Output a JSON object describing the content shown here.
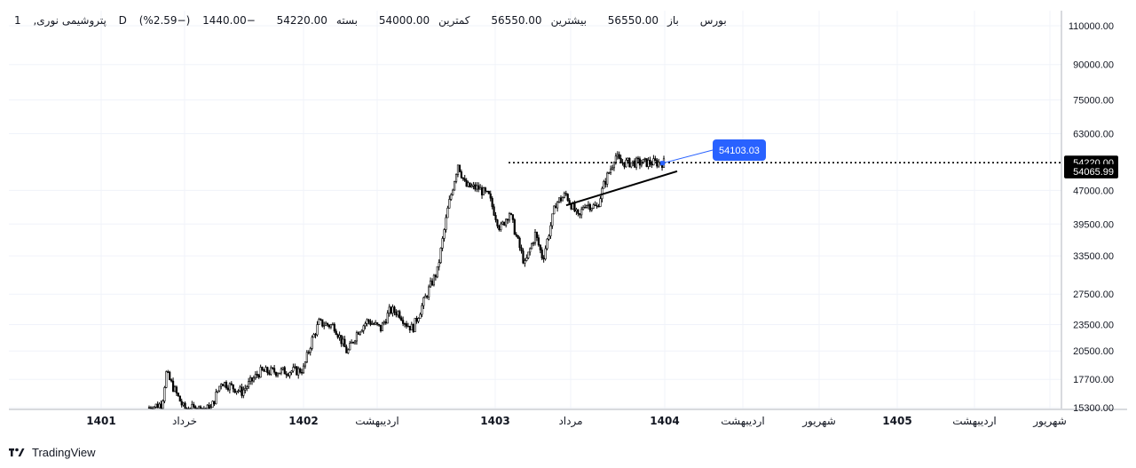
{
  "header": {
    "interval": "1",
    "symbol": "پتروشیمی نوری",
    "data_source": "D",
    "exchange": "بورس",
    "open_label": "باز",
    "open_value": "56550.00",
    "high_label": "بیشترین",
    "high_value": "56550.00",
    "low_label": "کمترین",
    "low_value": "54000.00",
    "close_label": "بسته",
    "close_value": "54220.00",
    "change": "−1440.00",
    "change_pct": "(−2.59%)"
  },
  "brand": {
    "name": "TradingView"
  },
  "colors": {
    "candles": "#000000",
    "grid": "#f0f3fa",
    "price_tag_bg": "#000000",
    "annotation": "#2962ff",
    "trendline": "#000000"
  },
  "chart_data": {
    "type": "candlestick",
    "y_scale": "log",
    "y_ticks": [
      110000,
      90000,
      75000,
      63000,
      54220,
      54065.99,
      47000,
      39500,
      33500,
      27500,
      23500,
      20500,
      17700,
      15300
    ],
    "y_tick_labels": [
      "110000.00",
      "90000.00",
      "75000.00",
      "63000.00",
      "54220.00",
      "54065.99",
      "47000.00",
      "39500.00",
      "33500.00",
      "27500.00",
      "23500.00",
      "20500.00",
      "17700.00",
      "15300.00"
    ],
    "x_tick_labels": [
      "1401",
      "خرداد",
      "1402",
      "اردیبهشت",
      "1403",
      "مرداد",
      "1404",
      "اردیبهشت",
      "شهریور",
      "1405",
      "اردیبهشت",
      "شهریور"
    ],
    "last_price": 54220,
    "last_price_label": "54220.00",
    "trendline_value": 54065.99,
    "trendline_label": "54065.99",
    "callout_value": 54103.03,
    "callout_label": "54103.03",
    "resistance_level": 54220,
    "price_path": [
      [
        0.0,
        15300
      ],
      [
        0.025,
        15600
      ],
      [
        0.033,
        18300
      ],
      [
        0.05,
        16700
      ],
      [
        0.068,
        15200
      ],
      [
        0.12,
        15200
      ],
      [
        0.14,
        17500
      ],
      [
        0.18,
        16600
      ],
      [
        0.215,
        18400
      ],
      [
        0.29,
        18500
      ],
      [
        0.3,
        18700
      ],
      [
        0.315,
        21500
      ],
      [
        0.33,
        23700
      ],
      [
        0.36,
        23300
      ],
      [
        0.385,
        20300
      ],
      [
        0.405,
        22700
      ],
      [
        0.425,
        24000
      ],
      [
        0.45,
        23000
      ],
      [
        0.468,
        25300
      ],
      [
        0.485,
        25000
      ],
      [
        0.5,
        23600
      ],
      [
        0.512,
        23000
      ],
      [
        0.525,
        25000
      ],
      [
        0.545,
        28500
      ],
      [
        0.56,
        31000
      ],
      [
        0.58,
        42500
      ],
      [
        0.6,
        54000
      ],
      [
        0.615,
        48000
      ],
      [
        0.64,
        47500
      ],
      [
        0.66,
        45500
      ],
      [
        0.682,
        38500
      ],
      [
        0.7,
        42000
      ],
      [
        0.715,
        36500
      ],
      [
        0.73,
        32000
      ],
      [
        0.75,
        37500
      ],
      [
        0.765,
        33000
      ],
      [
        0.79,
        44000
      ],
      [
        0.81,
        46000
      ],
      [
        0.835,
        40500
      ],
      [
        0.845,
        44000
      ],
      [
        0.87,
        43000
      ],
      [
        0.885,
        49000
      ],
      [
        0.9,
        53800
      ],
      [
        0.905,
        56550
      ],
      [
        0.915,
        54220
      ]
    ]
  }
}
